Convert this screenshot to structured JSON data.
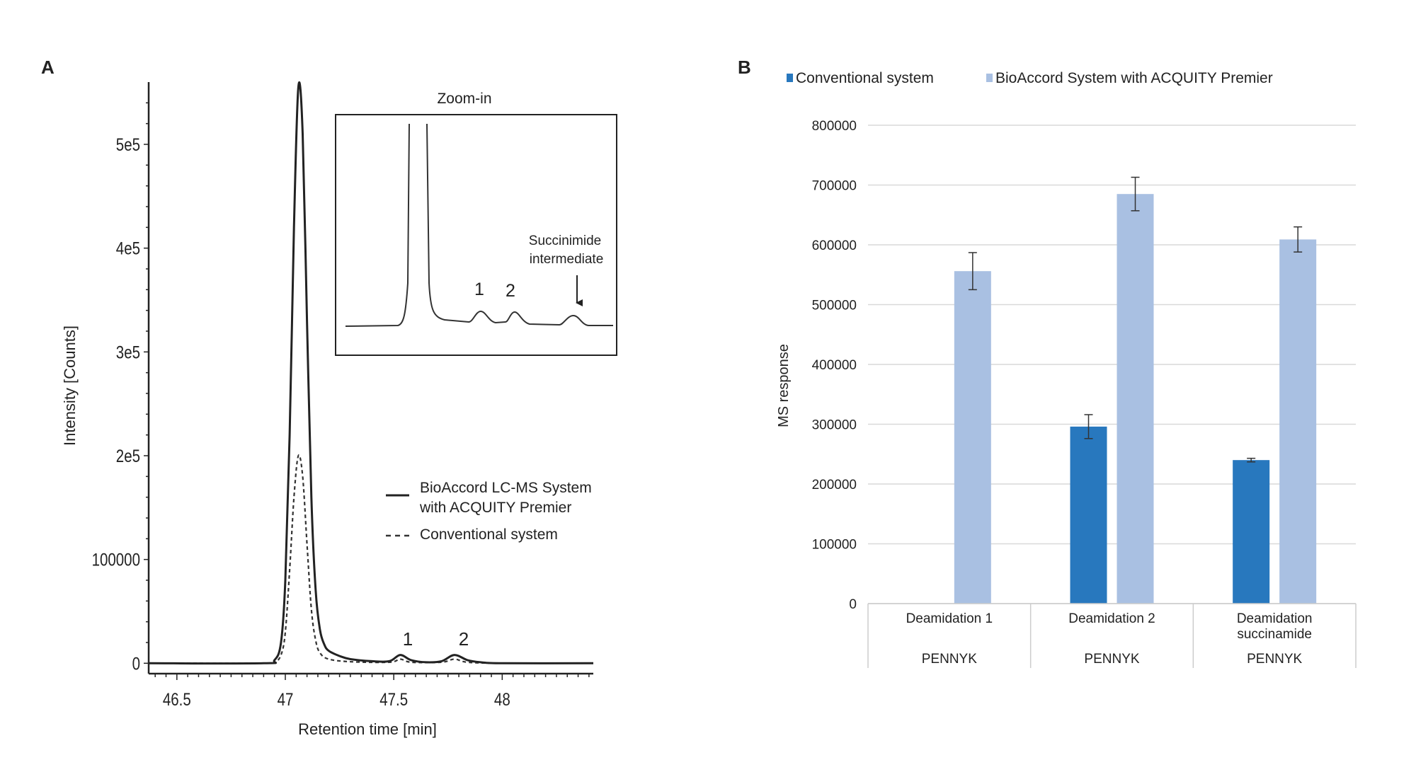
{
  "panel_a": {
    "label": "A",
    "inset_title": "Zoom-in",
    "inset_peak_1": "1",
    "inset_peak_2": "2",
    "inset_annotation_line1": "Succinimide",
    "inset_annotation_line2": "intermediate",
    "peak_1": "1",
    "peak_2": "2",
    "legend_solid_line1": "BioAccord LC-MS System",
    "legend_solid_line2": "with ACQUITY Premier",
    "legend_dashed": "Conventional system"
  },
  "panel_b": {
    "label": "B"
  },
  "chart_data": [
    {
      "type": "line",
      "xlabel": "Retention time [min]",
      "ylabel": "Intensity [Counts]",
      "xlim": [
        46.37,
        48.42
      ],
      "ylim": [
        -10000,
        560000
      ],
      "x_ticks": [
        46.5,
        47,
        47.5,
        48
      ],
      "x_tick_labels": [
        "46.5",
        "47",
        "47.5",
        "48"
      ],
      "y_ticks": [
        0,
        100000,
        200000,
        300000,
        400000,
        500000
      ],
      "y_tick_labels": [
        "0",
        "100000",
        "2e5",
        "3e5",
        "4e5",
        "5e5"
      ],
      "series": [
        {
          "name": "BioAccord LC-MS System with ACQUITY Premier",
          "style": "solid",
          "x": [
            46.37,
            46.9,
            46.95,
            46.98,
            47.0,
            47.02,
            47.04,
            47.06,
            47.08,
            47.1,
            47.12,
            47.14,
            47.16,
            47.18,
            47.2,
            47.25,
            47.3,
            47.4,
            47.48,
            47.53,
            47.58,
            47.65,
            47.72,
            47.78,
            47.84,
            47.9,
            48.0,
            48.42
          ],
          "y": [
            0,
            0,
            3000,
            20000,
            80000,
            220000,
            420000,
            555000,
            510000,
            330000,
            160000,
            70000,
            32000,
            18000,
            12000,
            7000,
            4000,
            2000,
            2000,
            8000,
            3000,
            1000,
            2000,
            8000,
            3000,
            1000,
            0,
            0
          ]
        },
        {
          "name": "Conventional system",
          "style": "dashed",
          "x": [
            46.37,
            46.9,
            46.95,
            46.98,
            47.0,
            47.02,
            47.04,
            47.06,
            47.08,
            47.1,
            47.12,
            47.14,
            47.16,
            47.2,
            47.3,
            47.48,
            47.53,
            47.58,
            47.72,
            47.78,
            47.84,
            48.0,
            48.42
          ],
          "y": [
            0,
            0,
            1000,
            8000,
            30000,
            90000,
            160000,
            200000,
            180000,
            115000,
            52000,
            22000,
            10000,
            4000,
            1500,
            1000,
            4000,
            1000,
            1000,
            4000,
            1000,
            0,
            0
          ]
        }
      ]
    },
    {
      "type": "bar",
      "ylabel": "MS response",
      "xlabel": "",
      "ylim": [
        0,
        800000
      ],
      "y_ticks": [
        0,
        100000,
        200000,
        300000,
        400000,
        500000,
        600000,
        700000,
        800000
      ],
      "y_tick_labels": [
        "0",
        "100000",
        "200000",
        "300000",
        "400000",
        "500000",
        "600000",
        "700000",
        "800000"
      ],
      "categories": [
        "Deamidation 1",
        "Deamidation 2",
        "Deamidation succinamide"
      ],
      "category_lines": [
        [
          "Deamidation 1"
        ],
        [
          "Deamidation 2"
        ],
        [
          "Deamidation",
          "succinamide"
        ]
      ],
      "group_labels": [
        "PENNYK",
        "PENNYK",
        "PENNYK"
      ],
      "grid": true,
      "legend_position": "top",
      "series": [
        {
          "name": "Conventional system",
          "color": "#2878be",
          "values": [
            0,
            296000,
            240000
          ],
          "errors": [
            0,
            20000,
            3000
          ]
        },
        {
          "name": "BioAccord System with ACQUITY Premier",
          "color": "#a9c0e2",
          "values": [
            556000,
            685000,
            609000
          ],
          "errors": [
            31000,
            28000,
            21000
          ]
        }
      ]
    }
  ]
}
